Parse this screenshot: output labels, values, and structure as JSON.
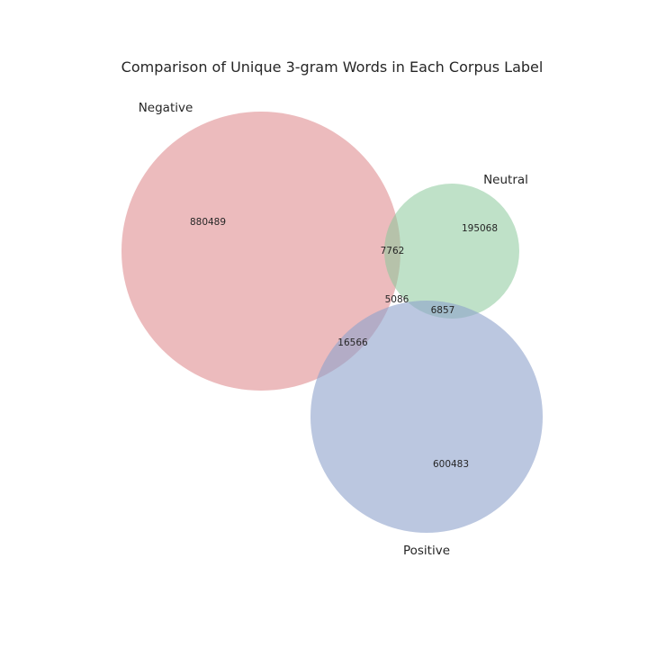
{
  "chart_data": {
    "type": "venn",
    "title": "Comparison of Unique 3-gram Words in Each Corpus Label",
    "sets": [
      {
        "name": "Negative",
        "color": "#e08e91"
      },
      {
        "name": "Neutral",
        "color": "#8bc89a"
      },
      {
        "name": "Positive",
        "color": "#8ea2cc"
      }
    ],
    "regions": {
      "negative_only": 880489,
      "neutral_only": 195068,
      "positive_only": 600483,
      "negative_neutral": 7762,
      "negative_positive": 16566,
      "neutral_positive": 6857,
      "all_three": 5086
    }
  }
}
